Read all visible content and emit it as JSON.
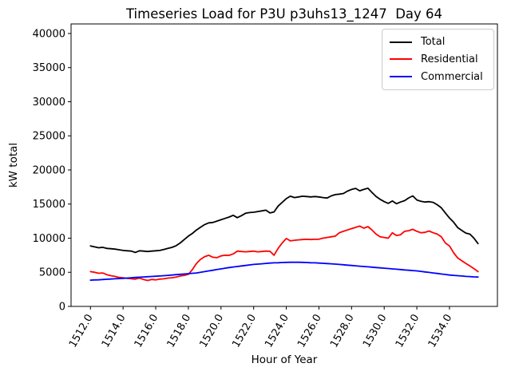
{
  "title": "Timeseries Load for P3U p3uhs13_1247  Day 64",
  "chart_data": {
    "type": "line",
    "title": "Timeseries Load for P3U p3uhs13_1247  Day 64",
    "xlabel": "Hour of Year",
    "ylabel": "kW total",
    "xlim": [
      1510.8125,
      1536.9375
    ],
    "ylim": [
      0,
      41400
    ],
    "grid": false,
    "legend_position": "upper right",
    "xticks": [
      1512,
      1514,
      1516,
      1518,
      1520,
      1522,
      1524,
      1526,
      1528,
      1530,
      1532,
      1534
    ],
    "xtick_labels": [
      "1512.0",
      "1514.0",
      "1516.0",
      "1518.0",
      "1520.0",
      "1522.0",
      "1524.0",
      "1526.0",
      "1528.0",
      "1530.0",
      "1532.0",
      "1534.0"
    ],
    "yticks": [
      0,
      5000,
      10000,
      15000,
      20000,
      25000,
      30000,
      35000,
      40000
    ],
    "ytick_labels": [
      "0",
      "5000",
      "10000",
      "15000",
      "20000",
      "25000",
      "30000",
      "35000",
      "40000"
    ],
    "x": [
      1512.0,
      1512.25,
      1512.5,
      1512.75,
      1513.0,
      1513.25,
      1513.5,
      1513.75,
      1514.0,
      1514.25,
      1514.5,
      1514.75,
      1515.0,
      1515.25,
      1515.5,
      1515.75,
      1516.0,
      1516.25,
      1516.5,
      1516.75,
      1517.0,
      1517.25,
      1517.5,
      1517.75,
      1518.0,
      1518.25,
      1518.5,
      1518.75,
      1519.0,
      1519.25,
      1519.5,
      1519.75,
      1520.0,
      1520.25,
      1520.5,
      1520.75,
      1521.0,
      1521.25,
      1521.5,
      1521.75,
      1522.0,
      1522.25,
      1522.5,
      1522.75,
      1523.0,
      1523.25,
      1523.5,
      1523.75,
      1524.0,
      1524.25,
      1524.5,
      1524.75,
      1525.0,
      1525.25,
      1525.5,
      1525.75,
      1526.0,
      1526.25,
      1526.5,
      1526.75,
      1527.0,
      1527.25,
      1527.5,
      1527.75,
      1528.0,
      1528.25,
      1528.5,
      1528.75,
      1529.0,
      1529.25,
      1529.5,
      1529.75,
      1530.0,
      1530.25,
      1530.5,
      1530.75,
      1531.0,
      1531.25,
      1531.5,
      1531.75,
      1532.0,
      1532.25,
      1532.5,
      1532.75,
      1533.0,
      1533.25,
      1533.5,
      1533.75,
      1534.0,
      1534.25,
      1534.5,
      1534.75,
      1535.0,
      1535.25,
      1535.5,
      1535.75
    ],
    "series": [
      {
        "name": "Total",
        "color": "#000000",
        "values": [
          8850,
          8720,
          8600,
          8650,
          8500,
          8450,
          8400,
          8300,
          8200,
          8150,
          8100,
          7900,
          8150,
          8100,
          8050,
          8100,
          8150,
          8200,
          8350,
          8500,
          8650,
          8900,
          9300,
          9800,
          10300,
          10700,
          11200,
          11600,
          12000,
          12250,
          12300,
          12500,
          12700,
          12900,
          13100,
          13350,
          13000,
          13300,
          13650,
          13750,
          13800,
          13900,
          14000,
          14100,
          13700,
          13850,
          14700,
          15250,
          15800,
          16150,
          15950,
          16050,
          16150,
          16100,
          16050,
          16100,
          16050,
          15950,
          15880,
          16200,
          16380,
          16450,
          16550,
          16900,
          17150,
          17300,
          16950,
          17150,
          17320,
          16700,
          16100,
          15700,
          15350,
          15100,
          15450,
          15050,
          15300,
          15500,
          15900,
          16200,
          15600,
          15400,
          15300,
          15350,
          15250,
          14900,
          14450,
          13700,
          12950,
          12350,
          11550,
          11150,
          10750,
          10600,
          10000,
          9200
        ]
      },
      {
        "name": "Residential",
        "color": "#ff0000",
        "values": [
          5100,
          5000,
          4850,
          4900,
          4650,
          4500,
          4400,
          4250,
          4200,
          4100,
          4050,
          4000,
          4150,
          3950,
          3800,
          3950,
          3900,
          4000,
          4050,
          4150,
          4200,
          4300,
          4450,
          4550,
          4700,
          5400,
          6300,
          6900,
          7300,
          7500,
          7200,
          7150,
          7400,
          7500,
          7480,
          7700,
          8100,
          8050,
          8000,
          8050,
          8100,
          8000,
          8050,
          8100,
          8080,
          7500,
          8500,
          9300,
          9950,
          9600,
          9700,
          9750,
          9800,
          9830,
          9800,
          9830,
          9850,
          10000,
          10100,
          10200,
          10300,
          10800,
          11000,
          11200,
          11400,
          11580,
          11780,
          11460,
          11700,
          11200,
          10600,
          10210,
          10100,
          10000,
          10800,
          10400,
          10500,
          11000,
          11100,
          11300,
          11000,
          10800,
          10850,
          11050,
          10800,
          10600,
          10200,
          9300,
          8850,
          7870,
          7100,
          6700,
          6300,
          5930,
          5530,
          5100
        ]
      },
      {
        "name": "Commercial",
        "color": "#0000ff",
        "values": [
          3850,
          3880,
          3900,
          3940,
          3980,
          4010,
          4050,
          4080,
          4100,
          4150,
          4200,
          4240,
          4280,
          4310,
          4350,
          4390,
          4420,
          4460,
          4500,
          4550,
          4600,
          4650,
          4700,
          4750,
          4800,
          4850,
          4900,
          5000,
          5100,
          5200,
          5300,
          5400,
          5500,
          5600,
          5700,
          5780,
          5850,
          5930,
          6000,
          6080,
          6150,
          6200,
          6250,
          6300,
          6350,
          6380,
          6400,
          6430,
          6450,
          6470,
          6480,
          6470,
          6450,
          6430,
          6400,
          6380,
          6350,
          6310,
          6280,
          6240,
          6200,
          6150,
          6100,
          6050,
          6000,
          5950,
          5900,
          5850,
          5800,
          5750,
          5700,
          5650,
          5600,
          5550,
          5500,
          5450,
          5400,
          5350,
          5300,
          5250,
          5200,
          5130,
          5050,
          4980,
          4900,
          4830,
          4750,
          4680,
          4600,
          4550,
          4500,
          4450,
          4400,
          4370,
          4330,
          4300
        ]
      }
    ]
  }
}
